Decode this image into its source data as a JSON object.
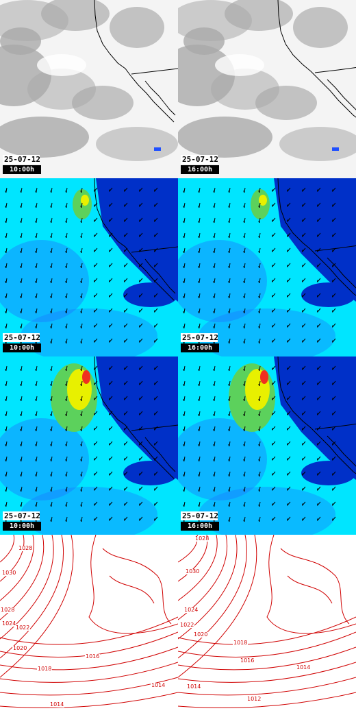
{
  "panels": [
    {
      "kind": "cloud",
      "date": "25-07-12",
      "time": "10:00h"
    },
    {
      "kind": "cloud",
      "date": "25-07-12",
      "time": "16:00h"
    },
    {
      "kind": "wind",
      "date": "25-07-12",
      "time": "10:00h"
    },
    {
      "kind": "wind",
      "date": "25-07-12",
      "time": "16:00h"
    },
    {
      "kind": "gust",
      "date": "25-07-12",
      "time": "10:00h"
    },
    {
      "kind": "gust",
      "date": "25-07-12",
      "time": "16:00h"
    },
    {
      "kind": "pressure",
      "isobars": [
        "1028",
        "1030",
        "1028",
        "1024",
        "1022",
        "1020",
        "1018",
        "1016",
        "1014",
        "1014"
      ]
    },
    {
      "kind": "pressure",
      "isobars": [
        "1028",
        "1030",
        "1024",
        "1022",
        "1020",
        "1018",
        "1016",
        "1014",
        "1014",
        "1012"
      ]
    }
  ],
  "colors": {
    "cloud_gray": "#a9a9a9",
    "ocean_cyan": "#00e5ff",
    "deep_blue": "#0030c8",
    "mid_blue": "#1a7bff",
    "jet_green": "#5cd15c",
    "jet_yellow": "#e8f000",
    "jet_red": "#f03020",
    "isobar_red": "#d00000",
    "coast": "#000000"
  }
}
